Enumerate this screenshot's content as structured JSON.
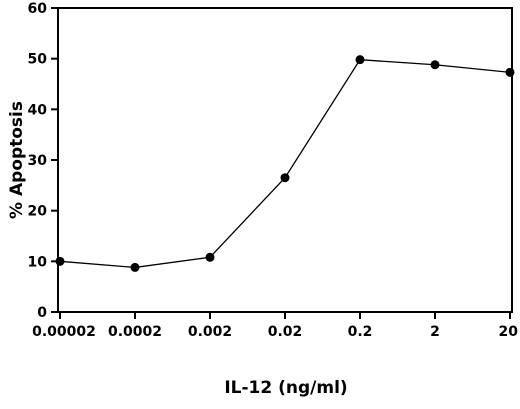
{
  "chart_data": {
    "type": "line",
    "title": "",
    "xlabel": "IL-12 (ng/ml)",
    "ylabel": "% Apoptosis",
    "x_scale": "log",
    "categories": [
      "0.00002",
      "0.0002",
      "0.002",
      "0.02",
      "0.2",
      "2",
      "20"
    ],
    "x": [
      2e-05,
      0.0002,
      0.002,
      0.02,
      0.2,
      2,
      20
    ],
    "ylim": [
      0,
      60
    ],
    "yticks": [
      0,
      10,
      20,
      30,
      40,
      50,
      60
    ],
    "grid": false,
    "legend": "none",
    "series": [
      {
        "values": [
          10,
          8.8,
          10.8,
          26.5,
          49.8,
          48.8,
          47.3
        ]
      }
    ]
  }
}
